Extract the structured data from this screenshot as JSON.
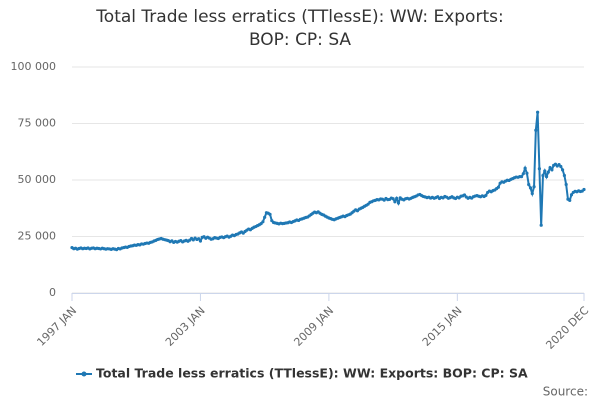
{
  "chart_data": {
    "type": "line",
    "title": "Total Trade less erratics (TTlessE): WW: Exports: BOP: CP: SA",
    "source": "Source:",
    "categories": [
      "1997 JAN",
      null,
      null,
      null,
      null,
      null,
      null,
      null,
      null,
      null,
      null,
      null,
      null,
      null,
      null,
      null,
      null,
      null,
      null,
      null,
      null,
      null,
      null,
      null,
      null,
      null,
      null,
      null,
      null,
      null,
      null,
      null,
      null,
      null,
      null,
      null,
      null,
      null,
      null,
      null,
      null,
      null,
      null,
      null,
      null,
      null,
      null,
      null,
      null,
      null,
      null,
      null,
      null,
      null,
      null,
      null,
      null,
      null,
      null,
      null,
      null,
      null,
      null,
      null,
      null,
      null,
      null,
      null,
      null,
      null,
      null,
      null,
      "2003 JAN",
      null,
      null,
      null,
      null,
      null,
      null,
      null,
      null,
      null,
      null,
      null,
      null,
      null,
      null,
      null,
      null,
      null,
      null,
      null,
      null,
      null,
      null,
      null,
      null,
      null,
      null,
      null,
      null,
      null,
      null,
      null,
      null,
      null,
      null,
      null,
      null,
      null,
      null,
      null,
      null,
      null,
      null,
      null,
      null,
      null,
      null,
      null,
      null,
      null,
      null,
      null,
      null,
      null,
      null,
      null,
      null,
      null,
      null,
      null,
      null,
      null,
      null,
      null,
      null,
      null,
      null,
      null,
      null,
      null,
      null,
      null,
      "2009 JAN",
      null,
      null,
      null,
      null,
      null,
      null,
      null,
      null,
      null,
      null,
      null,
      null,
      null,
      null,
      null,
      null,
      null,
      null,
      null,
      null,
      null,
      null,
      null,
      null,
      null,
      null,
      null,
      null,
      null,
      null,
      null,
      null,
      null,
      null,
      null,
      null,
      null,
      null,
      null,
      null,
      null,
      null,
      null,
      null,
      null,
      null,
      null,
      null,
      null,
      null,
      null,
      null,
      null,
      null,
      null,
      null,
      null,
      null,
      null,
      null,
      null,
      null,
      null,
      null,
      null,
      null,
      null,
      null,
      null,
      null,
      null,
      "2015 JAN",
      null,
      null,
      null,
      null,
      null,
      null,
      null,
      null,
      null,
      null,
      null,
      null,
      null,
      null,
      null,
      null,
      null,
      null,
      null,
      null,
      null,
      null,
      null,
      null,
      null,
      null,
      null,
      null,
      null,
      null,
      null,
      null,
      null,
      null,
      null,
      null,
      null,
      null,
      null,
      null,
      null,
      null,
      null,
      null,
      null,
      null,
      null,
      null,
      null,
      null,
      null,
      null,
      null,
      null,
      null,
      null,
      null,
      null,
      null,
      null,
      null,
      null,
      null,
      null,
      null,
      null,
      null,
      null,
      null,
      null,
      "2020 DEC"
    ],
    "series": [
      {
        "name": "Total Trade less erratics (TTlessE): WW: Exports: BOP: CP: SA",
        "color": "#1f78b4",
        "values": [
          20100,
          19600,
          19800,
          19400,
          19700,
          19900,
          19600,
          19800,
          19700,
          19900,
          19500,
          19800,
          19900,
          19600,
          19800,
          19700,
          19500,
          19800,
          19600,
          19400,
          19600,
          19500,
          19300,
          19600,
          19400,
          19200,
          19700,
          19500,
          19900,
          20100,
          20300,
          20200,
          20600,
          20800,
          20900,
          21200,
          21100,
          21400,
          21300,
          21700,
          21600,
          21900,
          22100,
          22000,
          22400,
          22600,
          23000,
          23300,
          23700,
          23900,
          24100,
          23800,
          23600,
          23400,
          23200,
          22700,
          23100,
          22400,
          22800,
          22500,
          22900,
          23200,
          22600,
          23000,
          23300,
          22900,
          23400,
          24100,
          23500,
          24300,
          23700,
          24000,
          23000,
          24600,
          24900,
          24200,
          24700,
          24300,
          23800,
          24000,
          24500,
          24300,
          24100,
          24600,
          24800,
          24500,
          24900,
          25200,
          24700,
          25100,
          25600,
          25400,
          25900,
          26100,
          26600,
          27000,
          26500,
          27200,
          27800,
          28300,
          28000,
          28600,
          29100,
          29400,
          29800,
          30200,
          30700,
          31500,
          33500,
          35500,
          35300,
          34800,
          32000,
          31200,
          31000,
          30800,
          30600,
          30900,
          30700,
          30800,
          31000,
          31100,
          31400,
          31200,
          31600,
          31900,
          32300,
          32100,
          32600,
          32800,
          33100,
          33400,
          33600,
          34100,
          34700,
          35300,
          35800,
          35500,
          35900,
          35300,
          34800,
          34500,
          34000,
          33600,
          33200,
          32900,
          32600,
          32400,
          32800,
          33100,
          33400,
          33700,
          34000,
          33800,
          34300,
          34600,
          34900,
          35500,
          36200,
          36800,
          36400,
          37100,
          37500,
          37900,
          38400,
          38800,
          39300,
          40100,
          40400,
          40800,
          41000,
          41300,
          41200,
          41600,
          41500,
          41100,
          41800,
          41300,
          41400,
          42000,
          41700,
          40400,
          41900,
          39800,
          42100,
          41500,
          41200,
          41700,
          41900,
          41600,
          41900,
          42300,
          42600,
          42900,
          43400,
          43600,
          43100,
          42700,
          42500,
          42200,
          42400,
          42000,
          42300,
          41900,
          42200,
          42600,
          41800,
          42300,
          42100,
          42700,
          42400,
          41900,
          42200,
          42600,
          42100,
          41800,
          42400,
          42100,
          42800,
          43000,
          43400,
          42500,
          41900,
          42300,
          42000,
          42600,
          42900,
          43100,
          42800,
          42600,
          43000,
          42700,
          43200,
          44500,
          45100,
          44800,
          45300,
          45600,
          46200,
          46800,
          48600,
          49200,
          49000,
          49500,
          49900,
          49800,
          50300,
          50600,
          51000,
          51300,
          51200,
          51500,
          51500,
          52800,
          55200,
          53000,
          48000,
          46500,
          44000,
          47000,
          72000,
          80000,
          55000,
          30000,
          52000,
          54000,
          51500,
          53500,
          55500,
          54500,
          56500,
          57000,
          56200,
          56800,
          56000,
          54500,
          52000,
          48000,
          41500,
          41000,
          43500,
          44500,
          45000,
          44800,
          45200,
          44900,
          45100,
          45800
        ]
      }
    ],
    "ylim": [
      0,
      100000
    ],
    "yticks": [
      0,
      {
        "value": 25000,
        "label": "25 000"
      },
      {
        "value": 50000,
        "label": "50 000"
      },
      {
        "value": 75000,
        "label": "75 000"
      },
      {
        "value": 100000,
        "label": "100 000"
      }
    ],
    "grid": true
  }
}
